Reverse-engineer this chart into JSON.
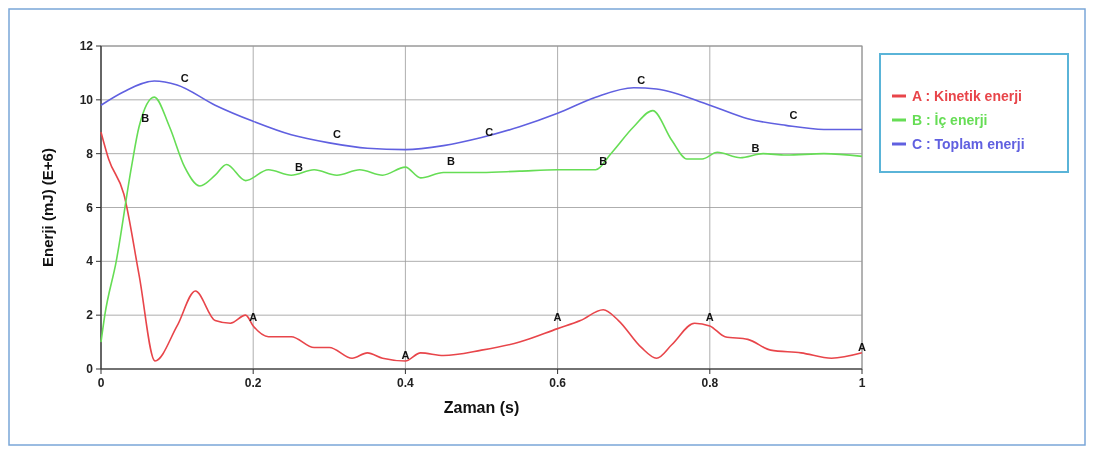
{
  "chart_data": {
    "type": "line",
    "xlabel": "Zaman (s)",
    "ylabel": "Enerji (mJ) (E+6)",
    "xlim": [
      0,
      1
    ],
    "ylim": [
      0,
      12
    ],
    "xticks": [
      0,
      0.2,
      0.4,
      0.6,
      0.8,
      1
    ],
    "yticks": [
      0,
      2,
      4,
      6,
      8,
      10,
      12
    ],
    "grid": true,
    "legend": "right",
    "marker": "none",
    "line_style": "solid",
    "series": [
      {
        "name": "A : Kinetik enerji",
        "color": "#e8454a",
        "x": [
          0,
          0.01,
          0.03,
          0.05,
          0.071,
          0.1,
          0.124,
          0.15,
          0.17,
          0.19,
          0.2,
          0.22,
          0.25,
          0.28,
          0.3,
          0.33,
          0.35,
          0.37,
          0.4,
          0.42,
          0.45,
          0.5,
          0.55,
          0.6,
          0.63,
          0.66,
          0.68,
          0.71,
          0.73,
          0.75,
          0.78,
          0.8,
          0.82,
          0.85,
          0.88,
          0.92,
          0.96,
          1
        ],
        "values": [
          8.8,
          7.8,
          6.5,
          3.5,
          0.3,
          1.6,
          2.9,
          1.8,
          1.7,
          2.0,
          1.6,
          1.2,
          1.2,
          0.8,
          0.8,
          0.4,
          0.6,
          0.4,
          0.3,
          0.6,
          0.5,
          0.7,
          1.0,
          1.5,
          1.8,
          2.2,
          1.8,
          0.8,
          0.4,
          0.9,
          1.7,
          1.6,
          1.2,
          1.1,
          0.7,
          0.6,
          0.4,
          0.6
        ]
      },
      {
        "name": "B : İç enerji",
        "color": "#66dd55",
        "x": [
          0,
          0.005,
          0.02,
          0.04,
          0.05,
          0.07,
          0.09,
          0.11,
          0.13,
          0.15,
          0.165,
          0.19,
          0.22,
          0.25,
          0.28,
          0.31,
          0.34,
          0.37,
          0.4,
          0.42,
          0.45,
          0.5,
          0.55,
          0.6,
          0.65,
          0.67,
          0.7,
          0.725,
          0.75,
          0.77,
          0.79,
          0.81,
          0.84,
          0.87,
          0.9,
          0.95,
          1
        ],
        "values": [
          1.0,
          2.0,
          4.0,
          7.5,
          9.0,
          10.1,
          9.0,
          7.5,
          6.8,
          7.2,
          7.6,
          7.0,
          7.4,
          7.2,
          7.4,
          7.2,
          7.4,
          7.2,
          7.5,
          7.1,
          7.3,
          7.3,
          7.35,
          7.4,
          7.4,
          8.0,
          9.0,
          9.6,
          8.5,
          7.8,
          7.8,
          8.05,
          7.85,
          8.0,
          7.95,
          8.0,
          7.9
        ]
      },
      {
        "name": "C : Toplam enerji",
        "color": "#6060e0",
        "x": [
          0,
          0.03,
          0.07,
          0.1,
          0.15,
          0.2,
          0.25,
          0.3,
          0.35,
          0.4,
          0.45,
          0.5,
          0.55,
          0.6,
          0.65,
          0.7,
          0.73,
          0.8,
          0.85,
          0.9,
          0.95,
          1
        ],
        "values": [
          9.8,
          10.3,
          10.7,
          10.55,
          9.8,
          9.2,
          8.7,
          8.4,
          8.2,
          8.15,
          8.3,
          8.6,
          9.0,
          9.5,
          10.1,
          10.45,
          10.4,
          9.8,
          9.3,
          9.05,
          8.9,
          8.9
        ]
      }
    ],
    "annotations": [
      {
        "text": "A",
        "x": 0.2,
        "y": 1.7
      },
      {
        "text": "A",
        "x": 0.4,
        "y": 0.3
      },
      {
        "text": "A",
        "x": 0.6,
        "y": 1.7
      },
      {
        "text": "A",
        "x": 0.8,
        "y": 1.7
      },
      {
        "text": "A",
        "x": 1,
        "y": 0.6
      },
      {
        "text": "B",
        "x": 0.058,
        "y": 9.1
      },
      {
        "text": "B",
        "x": 0.26,
        "y": 7.3
      },
      {
        "text": "B",
        "x": 0.46,
        "y": 7.5
      },
      {
        "text": "B",
        "x": 0.66,
        "y": 7.5
      },
      {
        "text": "B",
        "x": 0.86,
        "y": 8.0
      },
      {
        "text": "C",
        "x": 0.11,
        "y": 10.6
      },
      {
        "text": "C",
        "x": 0.31,
        "y": 8.5
      },
      {
        "text": "C",
        "x": 0.51,
        "y": 8.6
      },
      {
        "text": "C",
        "x": 0.71,
        "y": 10.5
      },
      {
        "text": "C",
        "x": 0.91,
        "y": 9.2
      }
    ]
  }
}
